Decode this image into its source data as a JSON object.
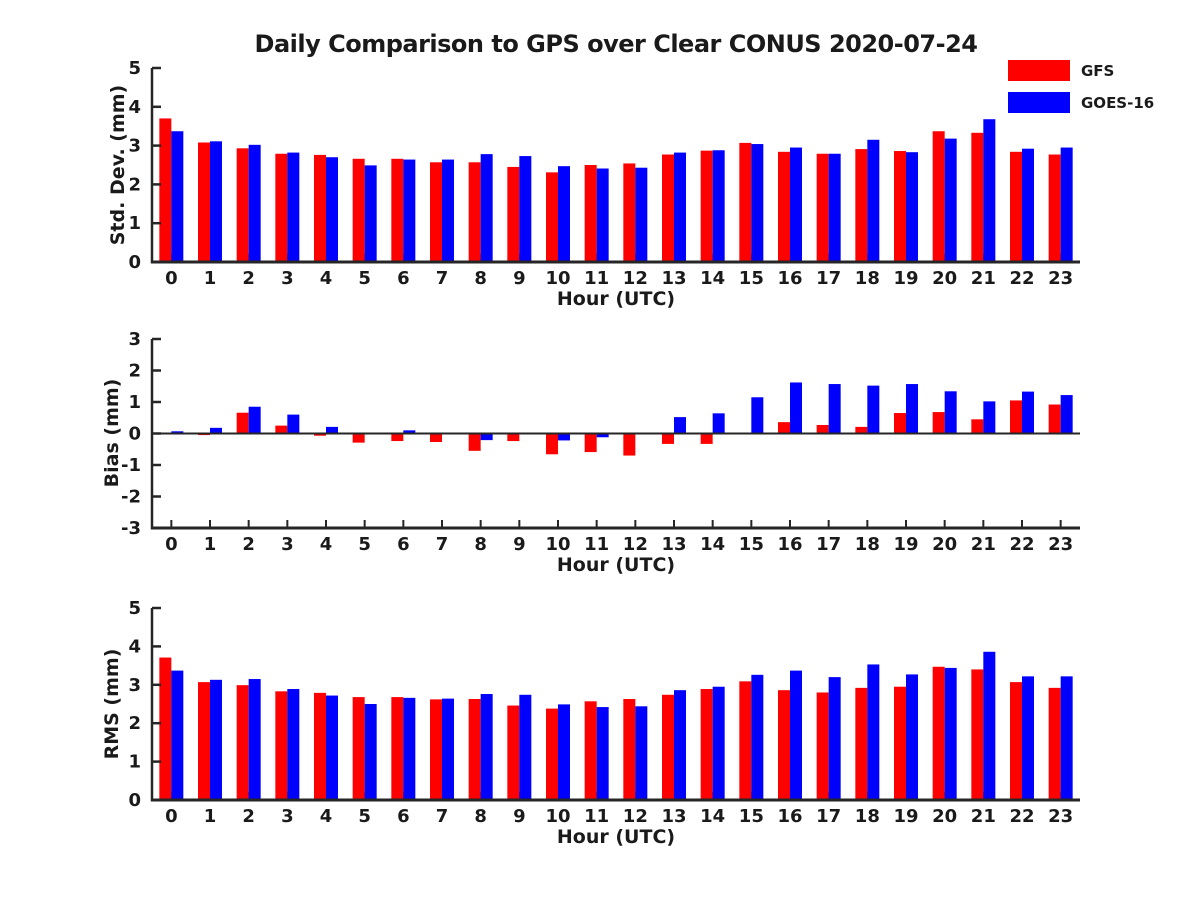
{
  "title": "Daily Comparison to GPS over Clear CONUS 2020-07-24",
  "colors": {
    "gfs": "#ff0000",
    "goes16": "#0000ff",
    "axis": "#262626",
    "text": "#1a1a1a",
    "background": "#ffffff"
  },
  "legend": {
    "position": "top-right",
    "entries": [
      {
        "label": "GFS",
        "color": "#ff0000"
      },
      {
        "label": "GOES-16",
        "color": "#0000ff"
      }
    ]
  },
  "chart_data": [
    {
      "type": "bar",
      "title": "",
      "xlabel": "Hour (UTC)",
      "ylabel": "Std. Dev. (mm)",
      "ylim": [
        0,
        5
      ],
      "yticks": [
        0,
        1,
        2,
        3,
        4,
        5
      ],
      "grid": false,
      "categories": [
        "0",
        "1",
        "2",
        "3",
        "4",
        "5",
        "6",
        "7",
        "8",
        "9",
        "10",
        "11",
        "12",
        "13",
        "14",
        "15",
        "16",
        "17",
        "18",
        "19",
        "20",
        "21",
        "22",
        "23"
      ],
      "series": [
        {
          "name": "GFS",
          "color": "#ff0000",
          "values": [
            3.7,
            3.08,
            2.93,
            2.79,
            2.76,
            2.66,
            2.66,
            2.57,
            2.57,
            2.45,
            2.31,
            2.5,
            2.54,
            2.77,
            2.87,
            3.07,
            2.84,
            2.79,
            2.91,
            2.86,
            3.37,
            3.33,
            2.84,
            2.77
          ]
        },
        {
          "name": "GOES-16",
          "color": "#0000ff",
          "values": [
            3.37,
            3.11,
            3.02,
            2.82,
            2.7,
            2.49,
            2.64,
            2.64,
            2.78,
            2.73,
            2.47,
            2.41,
            2.43,
            2.82,
            2.88,
            3.04,
            2.95,
            2.79,
            3.15,
            2.83,
            3.18,
            3.68,
            2.92,
            2.95
          ]
        }
      ]
    },
    {
      "type": "bar",
      "title": "",
      "xlabel": "Hour (UTC)",
      "ylabel": "Bias (mm)",
      "ylim": [
        -3,
        3
      ],
      "yticks": [
        -3,
        -2,
        -1,
        0,
        1,
        2,
        3
      ],
      "grid": false,
      "categories": [
        "0",
        "1",
        "2",
        "3",
        "4",
        "5",
        "6",
        "7",
        "8",
        "9",
        "10",
        "11",
        "12",
        "13",
        "14",
        "15",
        "16",
        "17",
        "18",
        "19",
        "20",
        "21",
        "22",
        "23"
      ],
      "series": [
        {
          "name": "GFS",
          "color": "#ff0000",
          "values": [
            0.02,
            -0.05,
            0.66,
            0.25,
            -0.07,
            -0.29,
            -0.24,
            -0.27,
            -0.55,
            -0.24,
            -0.66,
            -0.59,
            -0.7,
            -0.33,
            -0.33,
            0.03,
            0.36,
            0.27,
            0.21,
            0.65,
            0.68,
            0.45,
            1.05,
            0.92
          ]
        },
        {
          "name": "GOES-16",
          "color": "#0000ff",
          "values": [
            0.07,
            0.18,
            0.85,
            0.6,
            0.21,
            0.0,
            0.1,
            -0.02,
            -0.21,
            0.03,
            -0.22,
            -0.12,
            -0.03,
            0.52,
            0.64,
            1.15,
            1.62,
            1.57,
            1.52,
            1.57,
            1.34,
            1.02,
            1.33,
            1.22
          ]
        }
      ]
    },
    {
      "type": "bar",
      "title": "",
      "xlabel": "Hour (UTC)",
      "ylabel": "RMS (mm)",
      "ylim": [
        0,
        5
      ],
      "yticks": [
        0,
        1,
        2,
        3,
        4,
        5
      ],
      "grid": false,
      "categories": [
        "0",
        "1",
        "2",
        "3",
        "4",
        "5",
        "6",
        "7",
        "8",
        "9",
        "10",
        "11",
        "12",
        "13",
        "14",
        "15",
        "16",
        "17",
        "18",
        "19",
        "20",
        "21",
        "22",
        "23"
      ],
      "series": [
        {
          "name": "GFS",
          "color": "#ff0000",
          "values": [
            3.71,
            3.07,
            2.99,
            2.83,
            2.79,
            2.68,
            2.68,
            2.62,
            2.63,
            2.46,
            2.38,
            2.57,
            2.63,
            2.74,
            2.89,
            3.09,
            2.86,
            2.8,
            2.92,
            2.95,
            3.47,
            3.4,
            3.07,
            2.92
          ]
        },
        {
          "name": "GOES-16",
          "color": "#0000ff",
          "values": [
            3.37,
            3.13,
            3.15,
            2.89,
            2.72,
            2.5,
            2.66,
            2.64,
            2.76,
            2.74,
            2.49,
            2.42,
            2.44,
            2.86,
            2.95,
            3.26,
            3.37,
            3.2,
            3.53,
            3.27,
            3.44,
            3.86,
            3.22,
            3.22
          ]
        }
      ]
    }
  ]
}
